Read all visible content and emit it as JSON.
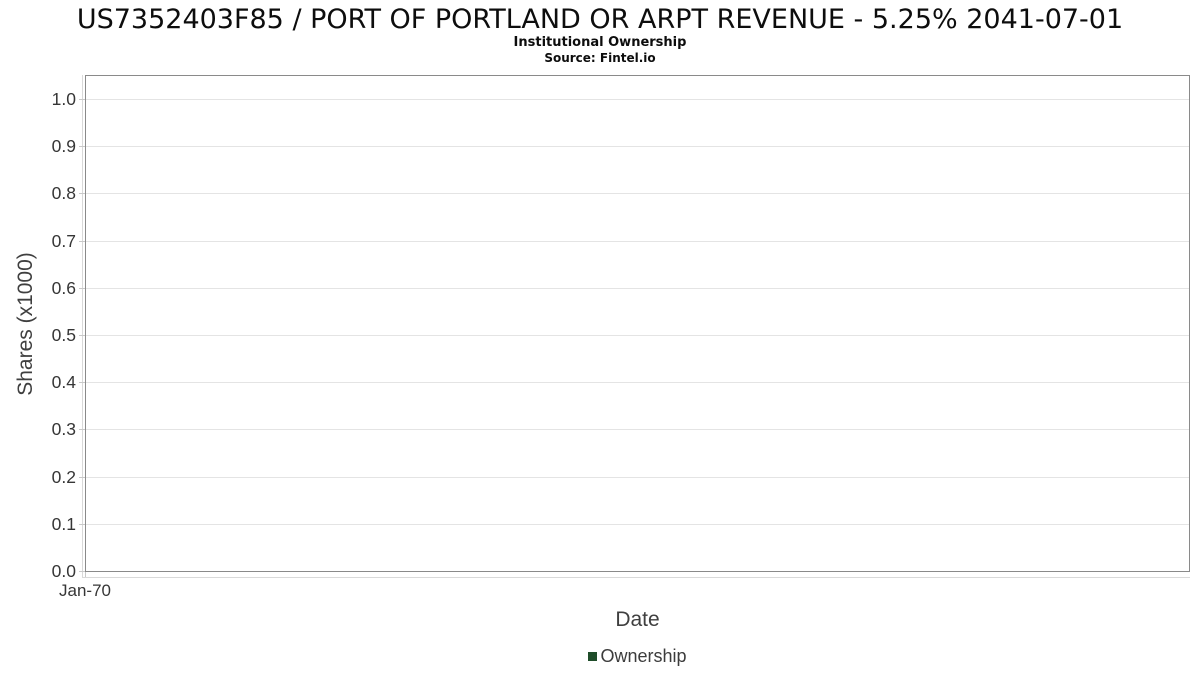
{
  "header": {
    "title": "US7352403F85 / PORT OF PORTLAND OR ARPT REVENUE - 5.25% 2041-07-01",
    "subtitle": "Institutional Ownership",
    "source": "Source: Fintel.io"
  },
  "chart_data": {
    "type": "line",
    "title": "US7352403F85 / PORT OF PORTLAND OR ARPT REVENUE - 5.25% 2041-07-01",
    "subtitle": "Institutional Ownership",
    "source": "Source: Fintel.io",
    "xlabel": "Date",
    "ylabel": "Shares (x1000)",
    "x_axis": {
      "ticks": [
        "Jan-70"
      ],
      "tick_fractions": [
        0
      ]
    },
    "y_axis": {
      "ticks": [
        "0.0",
        "0.1",
        "0.2",
        "0.3",
        "0.4",
        "0.5",
        "0.6",
        "0.7",
        "0.8",
        "0.9",
        "1.0"
      ],
      "ylim": [
        0.0,
        1.05
      ]
    },
    "grid": true,
    "legend": {
      "position": "bottom",
      "entries": [
        {
          "label": "Ownership",
          "color": "#1f4d2a"
        }
      ]
    },
    "series": [
      {
        "name": "Ownership",
        "x": [],
        "y": [],
        "note": "no data points plotted"
      }
    ],
    "colors": {
      "plot_border": "#8a8a8a",
      "gridline": "#e4e4e4",
      "axis_line": "#d9d9d9",
      "tick_label": "#363636",
      "axis_title": "#3f3f3f",
      "legend_swatch": "#1f4d2a",
      "background": "#ffffff"
    }
  }
}
